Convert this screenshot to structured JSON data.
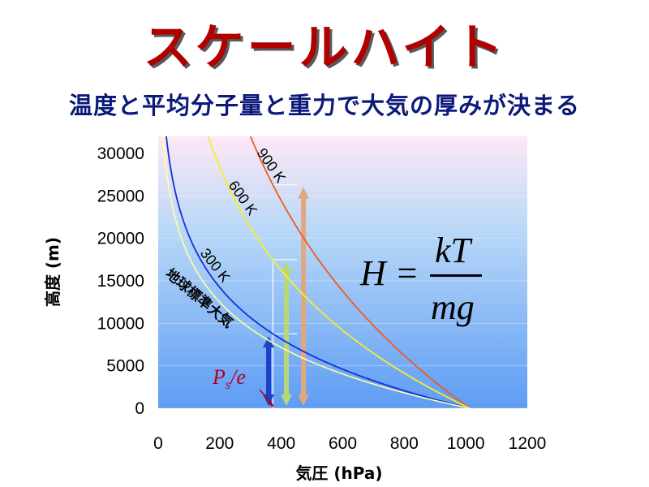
{
  "title": "スケールハイト",
  "subtitle": "温度と平均分子量と重力で大気の厚みが決まる",
  "formula": {
    "lhs": "H =",
    "numerator": "kT",
    "denominator": "mg"
  },
  "ps_label": {
    "P": "P",
    "sub": "s",
    "rest": "/e"
  },
  "chart_data": {
    "type": "line",
    "xlabel": "気圧 (hPa)",
    "ylabel": "高度 (m)",
    "xlim": [
      0,
      1200
    ],
    "ylim": [
      0,
      32000
    ],
    "xticks": [
      0,
      200,
      400,
      600,
      800,
      1000,
      1200
    ],
    "yticks": [
      0,
      5000,
      10000,
      15000,
      20000,
      25000,
      30000
    ],
    "surface_pressure": 1013,
    "series": [
      {
        "name": "900 K",
        "color": "#ee5a1e",
        "scale_height": 26300
      },
      {
        "name": "600 K",
        "color": "#f5ee2a",
        "scale_height": 17500
      },
      {
        "name": "300 K",
        "color": "#1530d8",
        "scale_height": 8770
      },
      {
        "name": "地球標準大気",
        "color": "#ffffa0",
        "scale_height": 7700
      }
    ],
    "arrows": [
      {
        "x": 372,
        "height": 8770,
        "color": "#2040c8"
      },
      {
        "x": 372,
        "height": 17500,
        "color": "#b8d878"
      },
      {
        "x": 372,
        "height": 26300,
        "color": "#e0a880"
      }
    ],
    "ps_over_e_pressure": 373
  }
}
